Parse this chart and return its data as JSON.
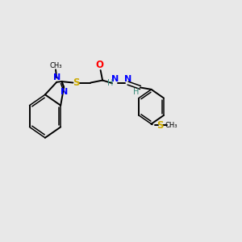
{
  "bg_color": "#e8e8e8",
  "bond_color": "#000000",
  "N_color": "#0000ff",
  "O_color": "#ff0000",
  "S_color": "#ccaa00",
  "H_color": "#3a8a7a",
  "figsize": [
    3.0,
    3.0
  ],
  "dpi": 100,
  "xlim": [
    0,
    12
  ],
  "ylim": [
    0,
    10
  ]
}
